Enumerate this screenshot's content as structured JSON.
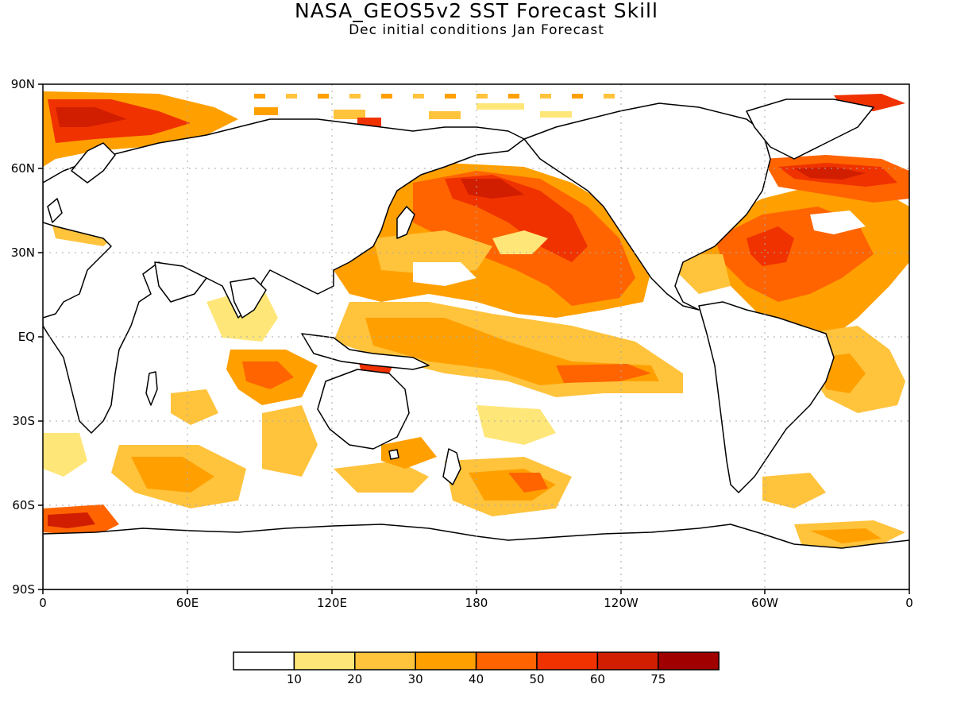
{
  "title": "NASA_GEOS5v2 SST Forecast Skill",
  "subtitle": "Dec initial conditions  Jan Forecast",
  "axes": {
    "y_ticks": [
      "90N",
      "60N",
      "30N",
      "EQ",
      "30S",
      "60S",
      "90S"
    ],
    "x_ticks": [
      "0",
      "60E",
      "120E",
      "180",
      "120W",
      "60W",
      "0"
    ]
  },
  "colorbar": {
    "labels": [
      "10",
      "20",
      "30",
      "40",
      "50",
      "60",
      "75"
    ],
    "colors": [
      "#ffffff",
      "#ffe678",
      "#ffc33c",
      "#ffa000",
      "#ff6400",
      "#f03200",
      "#d21e00",
      "#a00000"
    ]
  },
  "map": {
    "projection": "equirectangular",
    "lon_range": [
      0,
      360
    ],
    "lat_range": [
      -90,
      90
    ],
    "grid_lines": "dotted gray",
    "field": "SST forecast skill"
  }
}
